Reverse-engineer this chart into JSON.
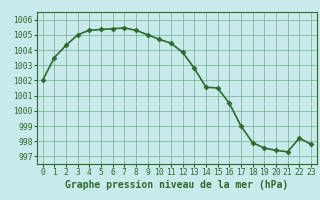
{
  "x": [
    0,
    1,
    2,
    3,
    4,
    5,
    6,
    7,
    8,
    9,
    10,
    11,
    12,
    13,
    14,
    15,
    16,
    17,
    18,
    19,
    20,
    21,
    22,
    23
  ],
  "y": [
    1002.0,
    1003.5,
    1004.3,
    1005.0,
    1005.3,
    1005.35,
    1005.4,
    1005.45,
    1005.3,
    1005.0,
    1004.7,
    1004.45,
    1003.85,
    1002.8,
    1001.55,
    1001.5,
    1000.5,
    999.0,
    997.9,
    997.55,
    997.4,
    997.3,
    998.2,
    997.8
  ],
  "line_color": "#2d6a2d",
  "marker_color": "#2d6a2d",
  "bg_color": "#c8eaea",
  "grid_color": "#5a9e7a",
  "title": "Graphe pression niveau de la mer (hPa)",
  "xlim": [
    -0.5,
    23.5
  ],
  "ylim": [
    996.5,
    1006.5
  ],
  "yticks": [
    997,
    998,
    999,
    1000,
    1001,
    1002,
    1003,
    1004,
    1005,
    1006
  ],
  "xticks": [
    0,
    1,
    2,
    3,
    4,
    5,
    6,
    7,
    8,
    9,
    10,
    11,
    12,
    13,
    14,
    15,
    16,
    17,
    18,
    19,
    20,
    21,
    22,
    23
  ],
  "title_fontsize": 7.0,
  "tick_fontsize": 5.8,
  "line_width": 1.2,
  "marker_size": 2.5
}
